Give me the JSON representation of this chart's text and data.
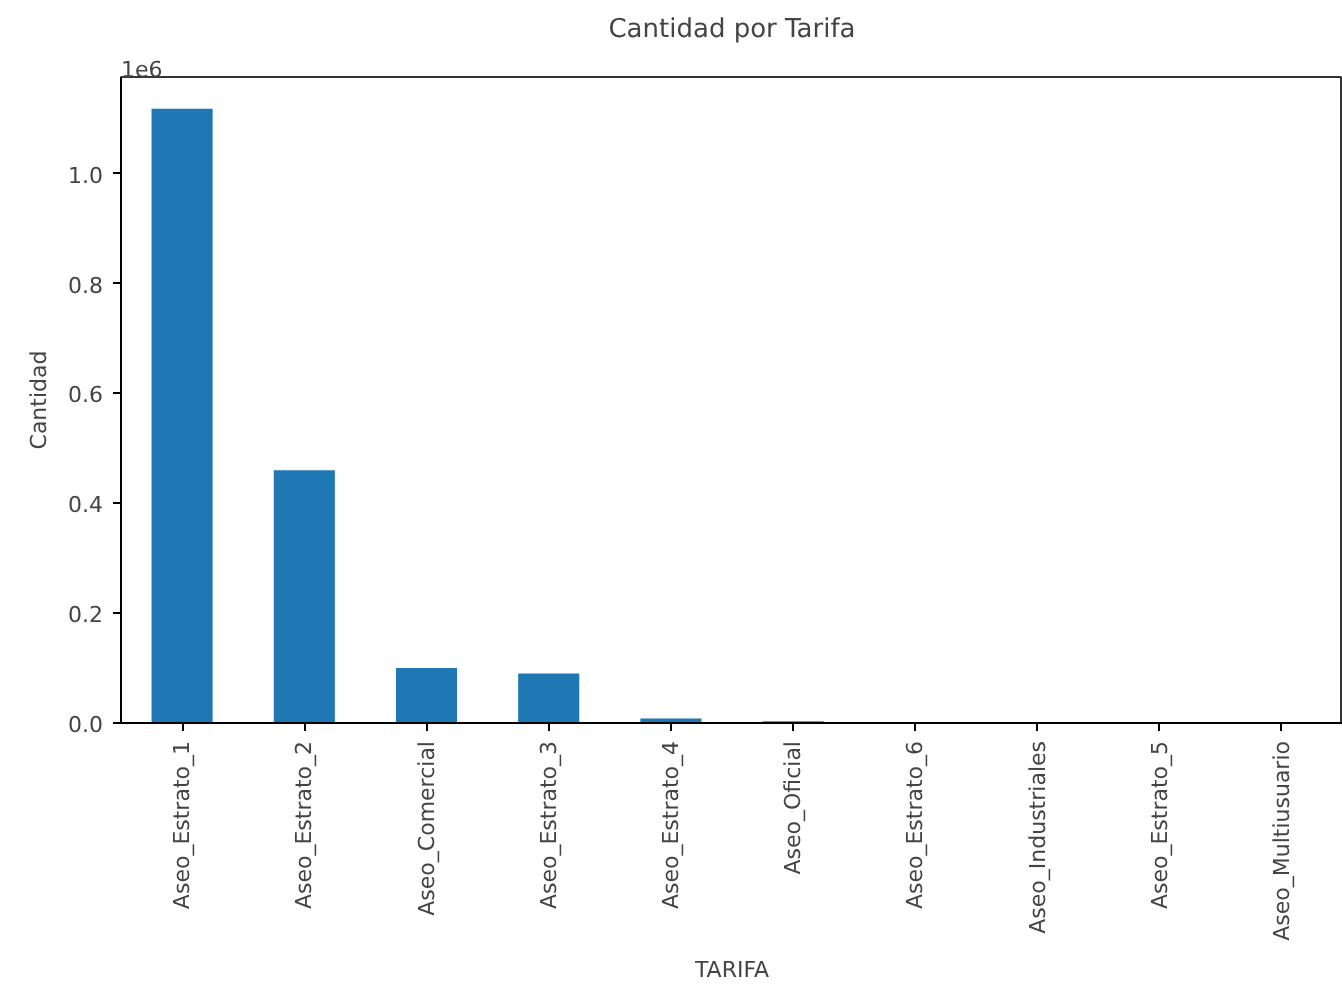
{
  "chart_data": {
    "type": "bar",
    "title": "Cantidad por Tarifa",
    "xlabel": "TARIFA",
    "ylabel": "Cantidad",
    "categories": [
      "Aseo_Estrato_1",
      "Aseo_Estrato_2",
      "Aseo_Comercial",
      "Aseo_Estrato_3",
      "Aseo_Estrato_4",
      "Aseo_Oficial",
      "Aseo_Estrato_6",
      "Aseo_Industriales",
      "Aseo_Estrato_5",
      "Aseo_Multiusuario"
    ],
    "values": [
      1.118,
      0.46,
      0.1,
      0.09,
      0.008,
      0.003,
      0,
      0,
      0,
      0
    ],
    "color": "#1f77b4",
    "ylim": [
      0,
      1.176
    ],
    "yticks": [
      {
        "value": 0,
        "label": "0.0"
      },
      {
        "value": 0.2,
        "label": "0.2"
      },
      {
        "value": 0.4,
        "label": "0.4"
      },
      {
        "value": 0.6,
        "label": "0.6"
      },
      {
        "value": 0.8,
        "label": "0.8"
      },
      {
        "value": 1.0,
        "label": "1.0"
      }
    ],
    "annotations": [
      "1e6"
    ],
    "grid": false
  }
}
